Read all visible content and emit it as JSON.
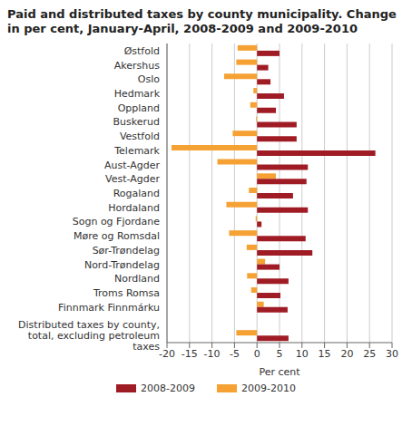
{
  "chart_data": {
    "type": "bar",
    "orientation": "horizontal",
    "title": "Paid and distributed taxes by county municipality. Change in per cent, January-April, 2008-2009 and 2009-2010",
    "xlabel": "Per cent",
    "categories": [
      "Østfold",
      "Akershus",
      "Oslo",
      "Hedmark",
      "Oppland",
      "Buskerud",
      "Vestfold",
      "Telemark",
      "Aust-Agder",
      "Vest-Agder",
      "Rogaland",
      "Hordaland",
      "Sogn og Fjordane",
      "Møre og Romsdal",
      "Sør-Trøndelag",
      "Nord-Trøndelag",
      "Nordland",
      "Troms Romsa",
      "Finnmark Finnmárku",
      null,
      "Distributed taxes by county, total, excluding petroleum taxes"
    ],
    "series": [
      {
        "name": "2008-2009",
        "color": "#a01c25",
        "values": [
          5,
          2.5,
          3,
          6,
          4.2,
          8.8,
          8.8,
          26.3,
          11.3,
          11,
          8,
          11.3,
          1,
          10.8,
          12.3,
          5,
          7,
          5.2,
          6.8,
          null,
          7
        ]
      },
      {
        "name": "2009-2010",
        "color": "#f5a133",
        "values": [
          -4.3,
          -4.6,
          -7.3,
          -0.8,
          -1.5,
          -0.2,
          -5.4,
          -19,
          -8.8,
          4.2,
          -1.8,
          -6.8,
          -0.3,
          -6.2,
          -2.3,
          1.8,
          -2.2,
          -1.3,
          1.5,
          null,
          -4.6
        ]
      }
    ],
    "xlim": [
      -20,
      30
    ],
    "xticks": [
      -20,
      -15,
      -10,
      -5,
      0,
      5,
      10,
      15,
      20,
      25,
      30
    ],
    "grid": true,
    "legend": "bottom"
  }
}
